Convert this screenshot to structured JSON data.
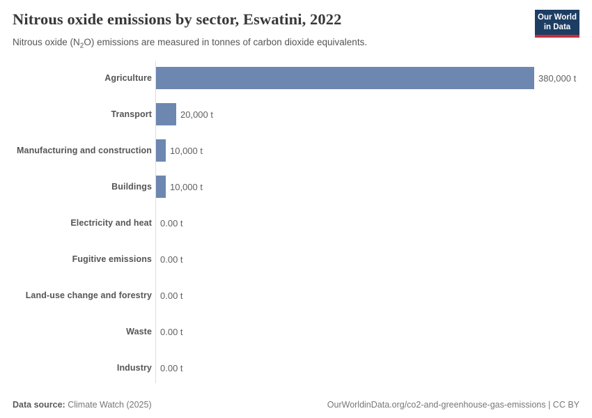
{
  "header": {
    "title": "Nitrous oxide emissions by sector, Eswatini, 2022",
    "subtitle_prefix": "Nitrous oxide (N",
    "subtitle_sub": "2",
    "subtitle_suffix": "O) emissions are measured in tonnes of carbon dioxide equivalents.",
    "logo": {
      "line1": "Our World",
      "line2": "in Data",
      "bg_color": "#1d3d63",
      "accent_color": "#c5303e"
    }
  },
  "chart_data": {
    "type": "bar",
    "orientation": "horizontal",
    "title": "Nitrous oxide emissions by sector, Eswatini, 2022",
    "subtitle": "Nitrous oxide (N2O) emissions are measured in tonnes of carbon dioxide equivalents.",
    "unit": "t",
    "categories": [
      "Agriculture",
      "Transport",
      "Manufacturing and construction",
      "Buildings",
      "Electricity and heat",
      "Fugitive emissions",
      "Land-use change and forestry",
      "Waste",
      "Industry"
    ],
    "values": [
      380000,
      20000,
      10000,
      10000,
      0,
      0,
      0,
      0,
      0
    ],
    "value_labels": [
      "380,000 t",
      "20,000 t",
      "10,000 t",
      "10,000 t",
      "0.00 t",
      "0.00 t",
      "0.00 t",
      "0.00 t",
      "0.00 t"
    ],
    "xlim": [
      0,
      380000
    ],
    "grid": false,
    "legend": false,
    "bar_color": "#6d87b1",
    "axis_color": "#dddddd"
  },
  "footer": {
    "source_label": "Data source:",
    "source_value": " Climate Watch (2025)",
    "link_text": "OurWorldinData.org/co2-and-greenhouse-gas-emissions | CC BY"
  }
}
